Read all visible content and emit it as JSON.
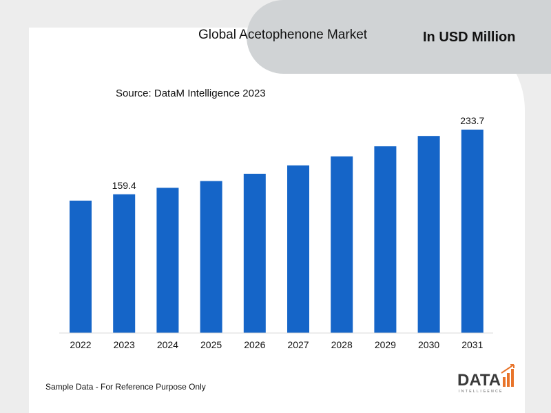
{
  "header": {
    "title": "Global Acetophenone Market",
    "unit": "In USD Million"
  },
  "source": "Source: DataM Intelligence 2023",
  "footnote": "Sample Data - For Reference Purpose Only",
  "logo": {
    "text": "DATA",
    "subtext": "INTELLIGENCE",
    "icon": "bar-chart-arrow-icon"
  },
  "colors": {
    "bar": "#1565c8",
    "background": "#ededed",
    "card": "#ffffff",
    "header": "#d0d3d5"
  },
  "chart_data": {
    "type": "bar",
    "title": "Global Acetophenone Market",
    "categories": [
      "2022",
      "2023",
      "2024",
      "2025",
      "2026",
      "2027",
      "2028",
      "2029",
      "2030",
      "2031"
    ],
    "values": [
      152.1,
      159.4,
      166.8,
      174.6,
      183.0,
      192.6,
      203.0,
      214.5,
      226.4,
      233.7
    ],
    "data_labels": [
      {
        "category": "2023",
        "text": "159.4"
      },
      {
        "category": "2031",
        "text": "233.7"
      }
    ],
    "ylim": [
      0,
      260
    ],
    "grid": false,
    "legend": "none"
  }
}
